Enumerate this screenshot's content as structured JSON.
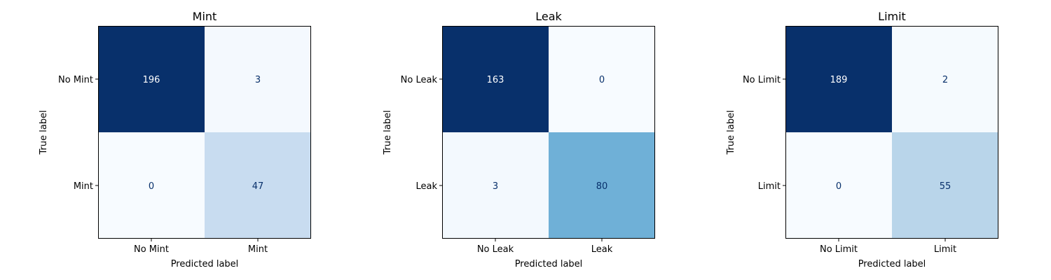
{
  "chart_data": [
    {
      "type": "heatmap",
      "title": "Mint",
      "xlabel": "Predicted label",
      "ylabel": "True label",
      "x_categories": [
        "No Mint",
        "Mint"
      ],
      "y_categories": [
        "No Mint",
        "Mint"
      ],
      "values": [
        [
          196,
          3
        ],
        [
          0,
          47
        ]
      ],
      "colormap": "Blues"
    },
    {
      "type": "heatmap",
      "title": "Leak",
      "xlabel": "Predicted label",
      "ylabel": "True label",
      "x_categories": [
        "No Leak",
        "Leak"
      ],
      "y_categories": [
        "No Leak",
        "Leak"
      ],
      "values": [
        [
          163,
          0
        ],
        [
          3,
          80
        ]
      ],
      "colormap": "Blues"
    },
    {
      "type": "heatmap",
      "title": "Limit",
      "xlabel": "Predicted label",
      "ylabel": "True label",
      "x_categories": [
        "No Limit",
        "Limit"
      ],
      "y_categories": [
        "No Limit",
        "Limit"
      ],
      "values": [
        [
          189,
          2
        ],
        [
          0,
          55
        ]
      ],
      "colormap": "Blues"
    }
  ]
}
